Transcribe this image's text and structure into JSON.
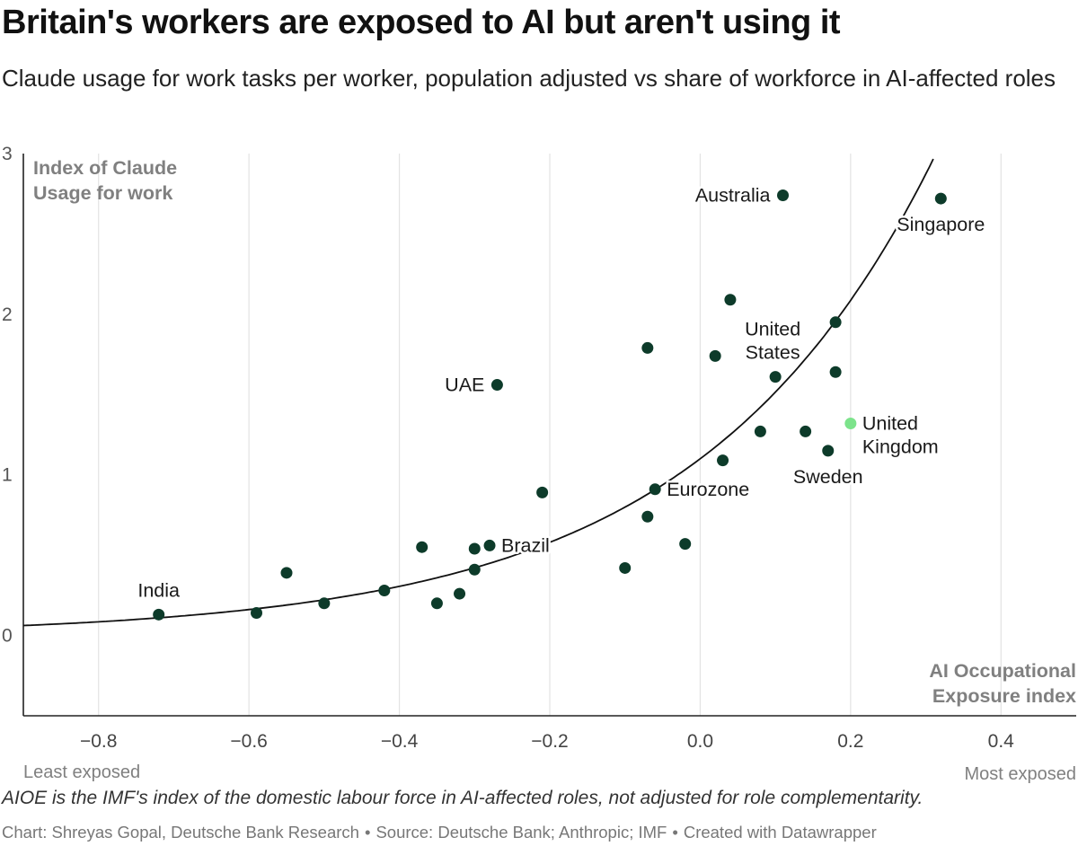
{
  "header": {
    "title": "Britain's workers are exposed to AI but aren't using it",
    "subtitle": "Claude usage for work tasks per worker, population adjusted vs share of workforce in AI-affected roles"
  },
  "footer": {
    "note": "AIOE is the IMF's index of the domestic labour force in AI-affected roles, not adjusted for role complementarity.",
    "chart_credit": "Chart: Shreyas Gopal, Deutsche Bank Research",
    "source": "Source: Deutsche Bank; Anthropic; IMF",
    "tool": "Created with Datawrapper",
    "separator": "•"
  },
  "chart_data": {
    "type": "scatter",
    "title": "Britain's workers are exposed to AI but aren't using it",
    "subtitle": "Claude usage for work tasks per worker, population adjusted vs share of workforce in AI-affected roles",
    "xlabel": "AI Occupational Exposure index",
    "ylabel": "Index of Claude Usage for work",
    "xlabel_lines": [
      "AI Occupational",
      "Exposure index"
    ],
    "ylabel_lines": [
      "Index of Claude",
      "Usage for work"
    ],
    "x_low_label": "Least exposed",
    "x_high_label": "Most exposed",
    "xlim": [
      -0.9,
      0.5
    ],
    "ylim": [
      -0.5,
      3
    ],
    "x_ticks": [
      -0.8,
      -0.6,
      -0.4,
      -0.2,
      0.0,
      0.2,
      0.4
    ],
    "x_tick_labels": [
      "−0.8",
      "−0.6",
      "−0.4",
      "−0.2",
      "0.0",
      "0.2",
      "0.4"
    ],
    "y_ticks": [
      0,
      1,
      2,
      3
    ],
    "y_tick_labels": [
      "0",
      "1",
      "2",
      "3"
    ],
    "grid": "vertical",
    "colors": {
      "point": "#0d3b2a",
      "highlight": "#7ce38b",
      "curve": "#111111",
      "grid": "#e3e3e3",
      "axis": "#222222"
    },
    "points": [
      {
        "x": -0.72,
        "y": 0.13,
        "label": "India",
        "label_pos": "curve"
      },
      {
        "x": -0.59,
        "y": 0.14
      },
      {
        "x": -0.55,
        "y": 0.39
      },
      {
        "x": -0.5,
        "y": 0.2
      },
      {
        "x": -0.42,
        "y": 0.28
      },
      {
        "x": -0.37,
        "y": 0.55
      },
      {
        "x": -0.35,
        "y": 0.2
      },
      {
        "x": -0.32,
        "y": 0.26
      },
      {
        "x": -0.3,
        "y": 0.41
      },
      {
        "x": -0.3,
        "y": 0.54
      },
      {
        "x": -0.28,
        "y": 0.56,
        "label": "Brazil",
        "label_pos": "right"
      },
      {
        "x": -0.27,
        "y": 1.56,
        "label": "UAE",
        "label_pos": "left"
      },
      {
        "x": -0.21,
        "y": 0.89
      },
      {
        "x": -0.1,
        "y": 0.42
      },
      {
        "x": -0.07,
        "y": 1.79
      },
      {
        "x": -0.07,
        "y": 0.74
      },
      {
        "x": -0.06,
        "y": 0.91,
        "label": "Eurozone",
        "label_pos": "right"
      },
      {
        "x": -0.02,
        "y": 0.57
      },
      {
        "x": 0.02,
        "y": 1.74
      },
      {
        "x": 0.03,
        "y": 1.09
      },
      {
        "x": 0.04,
        "y": 2.09
      },
      {
        "x": 0.08,
        "y": 1.27
      },
      {
        "x": 0.1,
        "y": 1.61,
        "label": "United States",
        "label_pos": "above"
      },
      {
        "x": 0.11,
        "y": 2.74,
        "label": "Australia",
        "label_pos": "left"
      },
      {
        "x": 0.14,
        "y": 1.27
      },
      {
        "x": 0.17,
        "y": 1.15,
        "label": "Sweden",
        "label_pos": "below"
      },
      {
        "x": 0.18,
        "y": 1.95
      },
      {
        "x": 0.18,
        "y": 1.64
      },
      {
        "x": 0.2,
        "y": 1.32,
        "label": "United Kingdom",
        "label_pos": "right",
        "highlight": true
      },
      {
        "x": 0.32,
        "y": 2.72,
        "label": "Singapore",
        "label_pos": "below"
      }
    ],
    "trend": {
      "type": "exponential",
      "a": 1.1,
      "b": 3.2
    }
  }
}
